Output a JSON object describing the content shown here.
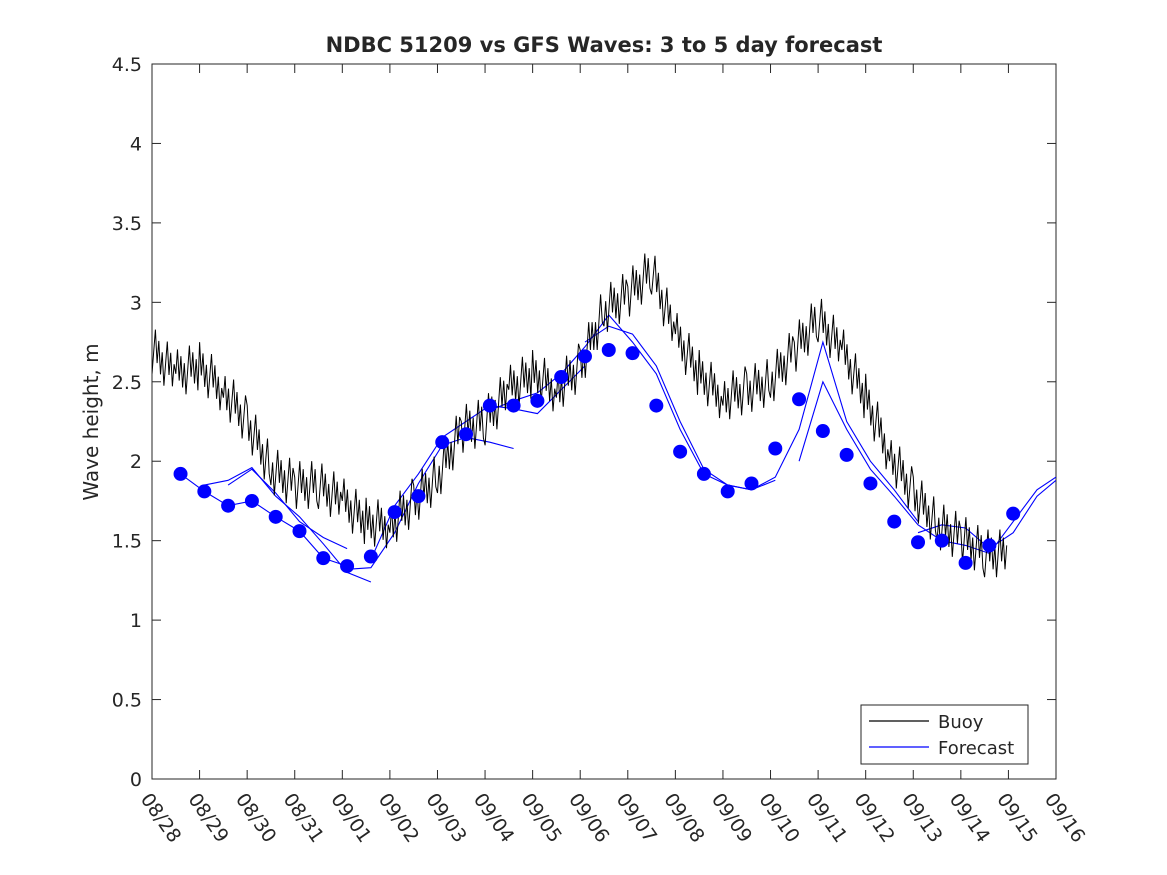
{
  "chart_data": {
    "type": "line",
    "title": "NDBC 51209 vs GFS Waves: 3 to 5 day forecast",
    "xlabel": "",
    "ylabel": "Wave height, m",
    "xlim": [
      0,
      19
    ],
    "ylim": [
      0,
      4.5
    ],
    "yticks": [
      0,
      0.5,
      1,
      1.5,
      2,
      2.5,
      3,
      3.5,
      4,
      4.5
    ],
    "ytick_labels": [
      "0",
      "0.5",
      "1",
      "1.5",
      "2",
      "2.5",
      "3",
      "3.5",
      "4",
      "4.5"
    ],
    "xtick_labels": [
      "08/28",
      "08/29",
      "08/30",
      "08/31",
      "09/01",
      "09/02",
      "09/03",
      "09/04",
      "09/05",
      "09/06",
      "09/07",
      "09/08",
      "09/09",
      "09/10",
      "09/11",
      "09/12",
      "09/13",
      "09/14",
      "09/15",
      "09/16"
    ],
    "legend": {
      "position": "bottom-right",
      "entries": [
        "Buoy",
        "Forecast"
      ]
    },
    "series": [
      {
        "name": "Buoy",
        "color": "#000000",
        "x": [
          0,
          0.5,
          1,
          1.5,
          2,
          2.5,
          3,
          3.5,
          4,
          4.5,
          5,
          5.5,
          6,
          6.5,
          7,
          7.5,
          8,
          8.5,
          9,
          9.5,
          10,
          10.5,
          11,
          11.5,
          12,
          12.5,
          13,
          13.5,
          14,
          14.5,
          15,
          15.5,
          16,
          16.5,
          17,
          17.5,
          18,
          18.5,
          19
        ],
        "y": [
          2.7,
          2.55,
          2.6,
          2.45,
          2.25,
          1.95,
          1.85,
          1.85,
          1.75,
          1.62,
          1.6,
          1.75,
          1.9,
          2.2,
          2.25,
          2.45,
          2.55,
          2.45,
          2.6,
          2.95,
          3.05,
          3.2,
          2.8,
          2.55,
          2.4,
          2.45,
          2.5,
          2.7,
          2.9,
          2.7,
          2.4,
          2.05,
          1.8,
          1.6,
          1.52,
          1.42,
          1.42,
          null,
          null
        ]
      },
      {
        "name": "Forecast",
        "color": "#0000ff",
        "markers_x": [
          0.6,
          1.1,
          1.6,
          2.1,
          2.6,
          3.1,
          3.6,
          4.1,
          4.6,
          5.1,
          5.6,
          6.1,
          6.6,
          7.1,
          7.6,
          8.1,
          8.6,
          9.1,
          9.6,
          10.1,
          10.6,
          11.1,
          11.6,
          12.1,
          12.6,
          13.1,
          13.6,
          14.1,
          14.6,
          15.1,
          15.6,
          16.1,
          16.6,
          17.1,
          17.6,
          18.1,
          18.6
        ],
        "markers_y": [
          1.92,
          1.81,
          1.72,
          1.75,
          1.65,
          1.56,
          1.39,
          1.34,
          1.4,
          1.68,
          1.78,
          2.12,
          2.17,
          2.35,
          2.35,
          2.38,
          2.53,
          2.66,
          2.7,
          2.68,
          2.35,
          2.06,
          1.92,
          1.81,
          1.86,
          2.08,
          2.39,
          2.19,
          2.04,
          1.86,
          1.62,
          1.49,
          1.5,
          1.36,
          1.47,
          1.67,
          null
        ],
        "runs": [
          {
            "x": [
              0.6,
              1.1,
              1.6,
              2.1,
              2.6,
              3.1,
              3.6,
              4.1
            ],
            "y": [
              1.92,
              1.81,
              1.72,
              1.75,
              1.65,
              1.56,
              1.39,
              1.34
            ]
          },
          {
            "x": [
              1.1,
              1.6,
              2.1,
              2.6,
              3.1,
              3.6,
              4.1,
              4.6
            ],
            "y": [
              1.85,
              1.88,
              1.96,
              1.78,
              1.65,
              1.48,
              1.3,
              1.24
            ]
          },
          {
            "x": [
              1.6,
              2.1,
              2.6,
              3.1,
              3.6,
              4.1
            ],
            "y": [
              1.85,
              1.95,
              1.8,
              1.62,
              1.52,
              1.45
            ]
          },
          {
            "x": [
              4.1,
              4.6,
              5.1,
              5.6,
              6.1,
              6.6,
              7.1,
              7.6
            ],
            "y": [
              1.32,
              1.33,
              1.55,
              1.86,
              2.1,
              2.15,
              2.12,
              2.08
            ]
          },
          {
            "x": [
              4.6,
              5.1,
              5.6,
              6.1,
              6.6,
              7.1,
              7.6,
              8.1,
              8.6,
              9.1
            ],
            "y": [
              1.38,
              1.72,
              1.92,
              2.15,
              2.25,
              2.35,
              2.33,
              2.3,
              2.45,
              2.6
            ]
          },
          {
            "x": [
              7.1,
              7.6,
              8.1,
              8.6,
              9.1,
              9.6,
              10.1,
              10.6,
              11.1,
              11.6,
              12.1,
              12.6,
              13.1
            ],
            "y": [
              2.32,
              2.38,
              2.43,
              2.55,
              2.72,
              2.92,
              2.75,
              2.55,
              2.2,
              1.92,
              1.85,
              1.82,
              1.88
            ]
          },
          {
            "x": [
              9.1,
              9.6,
              10.1,
              10.6,
              11.1,
              11.6,
              12.1,
              12.6,
              13.1,
              13.6,
              14.1,
              14.6,
              15.1,
              15.6,
              16.1
            ],
            "y": [
              2.75,
              2.85,
              2.8,
              2.6,
              2.25,
              1.95,
              1.85,
              1.82,
              1.9,
              2.2,
              2.75,
              2.25,
              2.0,
              1.82,
              1.62
            ]
          },
          {
            "x": [
              13.6,
              14.1,
              14.6,
              15.1,
              15.6,
              16.1,
              16.6,
              17.1,
              17.6,
              18.1,
              18.6,
              19
            ],
            "y": [
              2.0,
              2.5,
              2.2,
              1.95,
              1.78,
              1.6,
              1.5,
              1.47,
              1.42,
              1.62,
              1.82,
              1.9
            ]
          },
          {
            "x": [
              16.1,
              16.6,
              17.1,
              17.6,
              18.1,
              18.6,
              19
            ],
            "y": [
              1.55,
              1.6,
              1.58,
              1.45,
              1.55,
              1.78,
              1.88
            ]
          }
        ]
      }
    ]
  }
}
